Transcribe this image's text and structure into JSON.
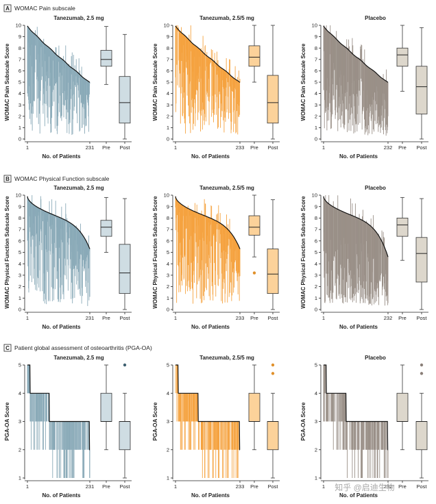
{
  "sections": [
    {
      "letter": "A",
      "title": "WOMAC Pain subscale",
      "ylabel": "WOMAC Pain Subscale Score",
      "ymax": 10,
      "kind": "continuous"
    },
    {
      "letter": "B",
      "title": "WOMAC Physical Function subscale",
      "ylabel": "WOMAC Physical Function Subscale Score",
      "ymax": 10,
      "kind": "continuous"
    },
    {
      "letter": "C",
      "title": "Patient global assessment of osteoarthritis (PGA-OA)",
      "ylabel": "PGA-OA Score",
      "ymax": 5,
      "kind": "ordinal"
    }
  ],
  "xlabel": "No. of Patients",
  "box_labels": [
    "Pre",
    "Post"
  ],
  "colors": {
    "tan25": "#8aaab8",
    "tan255": "#f5a340",
    "placebo": "#9a9088",
    "line": "#111111"
  },
  "box_colors": {
    "tan25": "#cfdde3",
    "tan255": "#fcd29a",
    "placebo": "#ddd7cc"
  },
  "watermark": "知乎 @启迪生物",
  "chart_data": [
    {
      "type": "bar",
      "title": "Tanezumab, 2.5 mg",
      "section": "A",
      "group": "tan25",
      "n": 231,
      "xticks": [
        "1",
        "231"
      ],
      "ylim": [
        0,
        10
      ],
      "pre": {
        "min": 4.8,
        "q1": 6.4,
        "median": 7.0,
        "q3": 7.8,
        "max": 9.9
      },
      "post": {
        "min": 0.0,
        "q1": 1.4,
        "median": 3.2,
        "q3": 5.5,
        "max": 9.2
      },
      "outliers_pre": [],
      "outliers_post": []
    },
    {
      "type": "bar",
      "title": "Tanezumab, 2.5/5 mg",
      "section": "A",
      "group": "tan255",
      "n": 233,
      "xticks": [
        "1",
        "233"
      ],
      "ylim": [
        0,
        10
      ],
      "pre": {
        "min": 5.0,
        "q1": 6.4,
        "median": 7.2,
        "q3": 8.2,
        "max": 10.0
      },
      "post": {
        "min": 0.0,
        "q1": 1.4,
        "median": 3.2,
        "q3": 5.6,
        "max": 10.0
      },
      "outliers_pre": [],
      "outliers_post": []
    },
    {
      "type": "bar",
      "title": "Placebo",
      "section": "A",
      "group": "placebo",
      "n": 232,
      "xticks": [
        "1",
        "232"
      ],
      "ylim": [
        0,
        10
      ],
      "pre": {
        "min": 4.2,
        "q1": 6.4,
        "median": 7.4,
        "q3": 8.0,
        "max": 10.0
      },
      "post": {
        "min": 0.0,
        "q1": 2.2,
        "median": 4.6,
        "q3": 6.4,
        "max": 9.8
      },
      "outliers_pre": [],
      "outliers_post": []
    },
    {
      "type": "bar",
      "title": "Tanezumab, 2.5 mg",
      "section": "B",
      "group": "tan25",
      "n": 231,
      "xticks": [
        "1",
        "231"
      ],
      "ylim": [
        0,
        10
      ],
      "pre": {
        "min": 5.0,
        "q1": 6.4,
        "median": 7.2,
        "q3": 7.8,
        "max": 9.8
      },
      "post": {
        "min": 0.0,
        "q1": 1.4,
        "median": 3.2,
        "q3": 5.7,
        "max": 9.7
      },
      "outliers_pre": [],
      "outliers_post": []
    },
    {
      "type": "bar",
      "title": "Tanezumab, 2.5/5 mg",
      "section": "B",
      "group": "tan255",
      "n": 233,
      "xticks": [
        "1",
        "233"
      ],
      "ylim": [
        0,
        10
      ],
      "pre": {
        "min": 4.6,
        "q1": 6.5,
        "median": 7.2,
        "q3": 8.2,
        "max": 10.0
      },
      "post": {
        "min": 0.0,
        "q1": 1.4,
        "median": 3.1,
        "q3": 5.3,
        "max": 9.6
      },
      "outliers_pre": [
        3.2
      ],
      "outliers_post": []
    },
    {
      "type": "bar",
      "title": "Placebo",
      "section": "B",
      "group": "placebo",
      "n": 232,
      "xticks": [
        "1",
        "232"
      ],
      "ylim": [
        0,
        10
      ],
      "pre": {
        "min": 4.3,
        "q1": 6.4,
        "median": 7.4,
        "q3": 8.0,
        "max": 9.8
      },
      "post": {
        "min": 0.0,
        "q1": 2.4,
        "median": 4.9,
        "q3": 6.3,
        "max": 9.7
      },
      "outliers_pre": [],
      "outliers_post": []
    },
    {
      "type": "bar",
      "title": "Tanezumab, 2.5 mg",
      "section": "C",
      "group": "tan25",
      "n": 231,
      "xticks": [
        "1",
        "231"
      ],
      "ylim": [
        1,
        5
      ],
      "pre": {
        "min": 2.0,
        "q1": 3.0,
        "median": 3.0,
        "q3": 4.0,
        "max": 5.0
      },
      "post": {
        "min": 1.0,
        "q1": 2.0,
        "median": 3.0,
        "q3": 3.0,
        "max": 4.0
      },
      "outliers_pre": [],
      "outliers_post": [
        5.0
      ]
    },
    {
      "type": "bar",
      "title": "Tanezumab, 2.5/5 mg",
      "section": "C",
      "group": "tan255",
      "n": 233,
      "xticks": [
        "1",
        "233"
      ],
      "ylim": [
        1,
        5
      ],
      "pre": {
        "min": 2.0,
        "q1": 3.0,
        "median": 3.0,
        "q3": 4.0,
        "max": 5.0
      },
      "post": {
        "min": 1.0,
        "q1": 2.0,
        "median": 3.0,
        "q3": 3.0,
        "max": 4.0
      },
      "outliers_pre": [],
      "outliers_post": [
        4.7,
        5.0
      ]
    },
    {
      "type": "bar",
      "title": "Placebo",
      "section": "C",
      "group": "placebo",
      "n": 232,
      "xticks": [
        "1",
        "232"
      ],
      "ylim": [
        1,
        5
      ],
      "pre": {
        "min": 2.0,
        "q1": 3.0,
        "median": 3.0,
        "q3": 4.0,
        "max": 5.0
      },
      "post": {
        "min": 1.0,
        "q1": 2.0,
        "median": 3.0,
        "q3": 3.0,
        "max": 4.0
      },
      "outliers_pre": [],
      "outliers_post": [
        4.7,
        5.0
      ]
    }
  ]
}
